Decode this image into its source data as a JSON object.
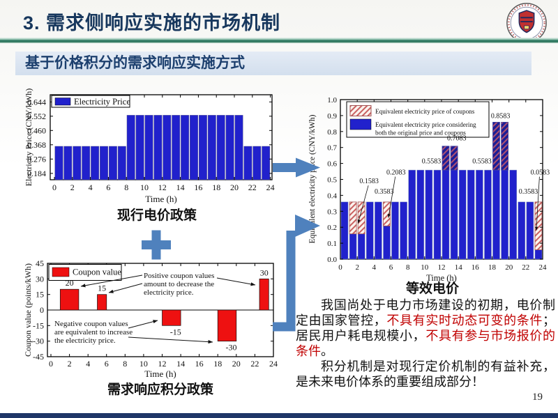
{
  "header": {
    "title": "3. 需求侧响应实施的市场机制",
    "subtitle": "基于价格积分的需求响应实施方式",
    "logo": "university-emblem"
  },
  "footer": {
    "page_number": "19"
  },
  "colors": {
    "bar_blue": "#2121cc",
    "bar_red": "#ee1111",
    "accent_blue": "#4f81bd",
    "hatch_red": "#c96060",
    "red_text": "#c00000",
    "title_navy": "#17375d"
  },
  "flow": {
    "plus_icon": "plus",
    "arrows": [
      "current-policy-to-equivalent",
      "coupon-policy-to-equivalent"
    ]
  },
  "analysis": {
    "paragraph1": [
      {
        "text": "我国尚处于电力市场建设的初期，电价制定由国家管控，",
        "color": "#111111"
      },
      {
        "text": "不具有实时动态可变的条件",
        "color": "#c00000"
      },
      {
        "text": "；居民用户耗电规模小，",
        "color": "#111111"
      },
      {
        "text": "不具有参与市场报价的条件",
        "color": "#c00000"
      },
      {
        "text": "。",
        "color": "#111111"
      }
    ],
    "paragraph2": [
      {
        "text": "积分机制是对现行定价机制的有益补充，是未来电价体系的重要组成部分！",
        "color": "#111111"
      }
    ]
  },
  "chart_data": [
    {
      "id": "electricity-price",
      "type": "bar",
      "title": "现行电价政策",
      "xlabel": "Time (h)",
      "ylabel": "Electricity Price (CNY/kWh)",
      "legend": [
        {
          "label": "Electricity Price",
          "color": "#2121cc"
        }
      ],
      "hours": [
        0,
        1,
        2,
        3,
        4,
        5,
        6,
        7,
        8,
        9,
        10,
        11,
        12,
        13,
        14,
        15,
        16,
        17,
        18,
        19,
        20,
        21,
        22,
        23
      ],
      "values": [
        0.3583,
        0.3583,
        0.3583,
        0.3583,
        0.3583,
        0.3583,
        0.3583,
        0.3583,
        0.5583,
        0.5583,
        0.5583,
        0.5583,
        0.5583,
        0.5583,
        0.5583,
        0.5583,
        0.5583,
        0.5583,
        0.5583,
        0.5583,
        0.5583,
        0.3583,
        0.3583,
        0.3583
      ],
      "ylim": [
        0.143,
        0.69
      ],
      "yticks": [
        "0.184",
        "0.276",
        "0.368",
        "0.460",
        "0.552",
        "0.644"
      ],
      "xticks": [
        0,
        2,
        4,
        6,
        8,
        10,
        12,
        14,
        16,
        18,
        20,
        22,
        24
      ]
    },
    {
      "id": "coupon-value",
      "type": "bar",
      "title": "需求响应积分政策",
      "xlabel": "Time (h)",
      "ylabel": "Coupon value (points/kWh)",
      "legend": [
        {
          "label": "Coupon value",
          "color": "#ee1111"
        }
      ],
      "ylim": [
        -45,
        45
      ],
      "yticks": [
        -45,
        -30,
        -15,
        0,
        15,
        30,
        45
      ],
      "xticks": [
        0,
        2,
        4,
        6,
        8,
        10,
        12,
        14,
        16,
        18,
        20,
        22,
        24
      ],
      "bars": [
        {
          "from_hour": 1,
          "to_hour": 3,
          "value": 20,
          "label": "20"
        },
        {
          "from_hour": 5,
          "to_hour": 6,
          "value": 15,
          "label": "15"
        },
        {
          "from_hour": 12,
          "to_hour": 14,
          "value": -15,
          "label": "-15"
        },
        {
          "from_hour": 18,
          "to_hour": 20,
          "value": -30,
          "label": "-30"
        },
        {
          "from_hour": 22.5,
          "to_hour": 23.5,
          "value": 30,
          "label": "30"
        }
      ],
      "annotations": [
        {
          "id": "positive",
          "lines": [
            "Positive coupon values",
            "amount to decrease the",
            "electricity price."
          ]
        },
        {
          "id": "negative",
          "lines": [
            "Negative coupon values",
            "are equivalent to increase",
            "the electricity price."
          ]
        }
      ]
    },
    {
      "id": "equivalent-price",
      "type": "stacked-bar",
      "title": "等效电价",
      "xlabel": "Time (h)",
      "ylabel": "Equivalent electricity price (CNY/kWh)",
      "legend": [
        {
          "label": "Equivalent electricity price of coupons",
          "style": "hatch",
          "label_lines": [
            "Equivalent electricity price of coupons"
          ]
        },
        {
          "label": "Equivalent electricity price considering both the original price and coupons",
          "style": "solid-blue",
          "label_lines": [
            "Equivalent electricity price considering",
            "both the original price and coupons"
          ]
        }
      ],
      "ylim": [
        0,
        1
      ],
      "yticks": [
        "0.0",
        "0.1",
        "0.2",
        "0.3",
        "0.4",
        "0.5",
        "0.6",
        "0.7",
        "0.8",
        "0.9",
        "1.0"
      ],
      "xticks": [
        0,
        2,
        4,
        6,
        8,
        10,
        12,
        14,
        16,
        18,
        20,
        22,
        24
      ],
      "blue_values": [
        0.3583,
        0.1583,
        0.1583,
        0.3583,
        0.3583,
        0.2083,
        0.3583,
        0.3583,
        0.5583,
        0.5583,
        0.5583,
        0.5583,
        0.5583,
        0.5583,
        0.5583,
        0.5583,
        0.5583,
        0.5583,
        0.5583,
        0.5583,
        0.5583,
        0.3583,
        0.3583,
        0.0583
      ],
      "coupon_segments": [
        {
          "hours": [
            1,
            2
          ],
          "from": 0.1583,
          "to": 0.3583,
          "variant": "light"
        },
        {
          "hours": [
            5
          ],
          "from": 0.2083,
          "to": 0.3583,
          "variant": "light"
        },
        {
          "hours": [
            12,
            13
          ],
          "from": 0.5583,
          "to": 0.7083,
          "variant": "dark"
        },
        {
          "hours": [
            18,
            19
          ],
          "from": 0.5583,
          "to": 0.8583,
          "variant": "dark"
        },
        {
          "hours": [
            23
          ],
          "from": 0.0583,
          "to": 0.3583,
          "variant": "light"
        }
      ],
      "point_labels": [
        {
          "text": "0.1583",
          "x": 3.4,
          "y": 0.475,
          "leader": [
            2.1,
            0.225
          ]
        },
        {
          "text": "0.3583",
          "x": 5.2,
          "y": 0.41
        },
        {
          "text": "0.2083",
          "x": 6.6,
          "y": 0.53,
          "leader": [
            5.7,
            0.26
          ]
        },
        {
          "text": "0.5583",
          "x": 10.8,
          "y": 0.6
        },
        {
          "text": "0.7083",
          "x": 13.8,
          "y": 0.745
        },
        {
          "text": "0.5583",
          "x": 16.8,
          "y": 0.6
        },
        {
          "text": "0.8583",
          "x": 19.0,
          "y": 0.885
        },
        {
          "text": "0.3583",
          "x": 22.3,
          "y": 0.41
        },
        {
          "text": "0.0583",
          "x": 23.7,
          "y": 0.53,
          "leader": [
            23.25,
            0.18
          ]
        }
      ]
    }
  ]
}
